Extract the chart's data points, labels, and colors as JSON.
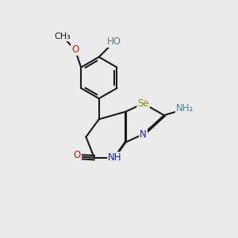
{
  "background_color": "#ebebeb",
  "bond_color": "#1a1a1a",
  "atom_colors": {
    "C": "#1a1a1a",
    "N": "#1a1acc",
    "O": "#cc1a1a",
    "Se": "#8b8b00",
    "H": "#4a8a8a"
  },
  "font_size": 8.5,
  "figsize": [
    3.0,
    3.0
  ],
  "dpi": 100,
  "xlim": [
    0,
    10
  ],
  "ylim": [
    0,
    10
  ]
}
